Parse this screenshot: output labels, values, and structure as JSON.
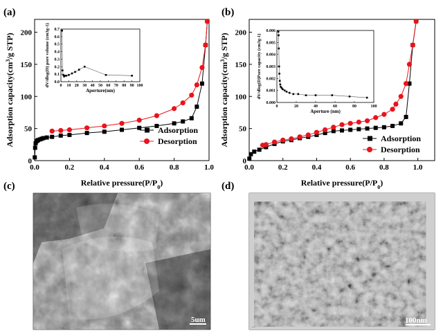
{
  "panel_labels": {
    "a": "(a)",
    "b": "(b)",
    "c": "(c)",
    "d": "(d)"
  },
  "colors": {
    "adsorption": "#000000",
    "desorption": "#e8141c",
    "inset_line": "#555555"
  },
  "chart_data": [
    {
      "id": "a",
      "type": "line",
      "title": "",
      "xlabel": "Relative pressure(P/P0)",
      "ylabel": "Adsorption capacity(cm3/g STP)",
      "xlim": [
        0,
        1.0
      ],
      "ylim": [
        0,
        220
      ],
      "xticks": [
        "0.0",
        "0.2",
        "0.4",
        "0.6",
        "0.8",
        "1.0"
      ],
      "yticks": [
        "0",
        "50",
        "100",
        "150",
        "200"
      ],
      "legend_position": "bottom-right",
      "series": [
        {
          "name": "Adsorption",
          "marker": "square",
          "x": [
            0.001,
            0.003,
            0.006,
            0.01,
            0.015,
            0.02,
            0.03,
            0.04,
            0.05,
            0.07,
            0.1,
            0.15,
            0.2,
            0.3,
            0.4,
            0.5,
            0.6,
            0.7,
            0.8,
            0.85,
            0.9,
            0.93,
            0.96,
            0.98,
            0.99
          ],
          "values": [
            5,
            20,
            27,
            30,
            31,
            32,
            33,
            34,
            35,
            36,
            37,
            39,
            40,
            43,
            45,
            48,
            51,
            54,
            58,
            61,
            66,
            84,
            120,
            180,
            217
          ]
        },
        {
          "name": "Desorption",
          "marker": "circle",
          "x": [
            0.99,
            0.98,
            0.96,
            0.93,
            0.9,
            0.85,
            0.8,
            0.7,
            0.6,
            0.5,
            0.4,
            0.3,
            0.2,
            0.15,
            0.1
          ],
          "values": [
            217,
            180,
            145,
            118,
            102,
            90,
            81,
            70,
            63,
            58,
            54,
            51,
            48,
            47,
            46
          ]
        }
      ],
      "inset": {
        "type": "line",
        "xlabel": "Aperture(nm)",
        "ylabel": "dV/dlog(D) pore volume (cm3g-1)",
        "xlim": [
          0,
          100
        ],
        "ylim": [
          0,
          0.7
        ],
        "xticks": [
          "0",
          "10",
          "20",
          "30",
          "40",
          "50",
          "60",
          "70",
          "80",
          "90",
          "100"
        ],
        "yticks": [
          "0.0",
          "0.1",
          "0.2",
          "0.3",
          "0.4",
          "0.5",
          "0.6",
          "0.7"
        ],
        "x": [
          1.5,
          2,
          3,
          4,
          5,
          7,
          10,
          14,
          18,
          23,
          30,
          57,
          90
        ],
        "values": [
          0.68,
          0.15,
          0.09,
          0.07,
          0.08,
          0.08,
          0.09,
          0.11,
          0.13,
          0.16,
          0.2,
          0.09,
          0.08
        ]
      }
    },
    {
      "id": "b",
      "type": "line",
      "title": "",
      "xlabel": "Relative pressure(P/P0)",
      "ylabel": "Adsorption capacity(cm3/g STP)",
      "xlim": [
        0,
        1.1
      ],
      "ylim": [
        0,
        220
      ],
      "xticks": [
        "0.0",
        "0.2",
        "0.4",
        "0.6",
        "0.8",
        "1.0"
      ],
      "yticks": [
        "0",
        "50",
        "100",
        "150",
        "200"
      ],
      "legend_position": "bottom-right",
      "series": [
        {
          "name": "Adsorption",
          "marker": "square",
          "x": [
            0.001,
            0.01,
            0.03,
            0.06,
            0.1,
            0.15,
            0.2,
            0.25,
            0.3,
            0.35,
            0.4,
            0.45,
            0.5,
            0.55,
            0.6,
            0.65,
            0.7,
            0.75,
            0.8,
            0.85,
            0.9,
            0.93,
            0.95,
            0.97,
            0.99
          ],
          "values": [
            3,
            10,
            14,
            17,
            21,
            26,
            30,
            32,
            35,
            37,
            40,
            43,
            46,
            47,
            48,
            49,
            50,
            51,
            52,
            54,
            58,
            68,
            120,
            180,
            217
          ]
        },
        {
          "name": "Desorption",
          "marker": "circle",
          "x": [
            0.99,
            0.97,
            0.95,
            0.93,
            0.9,
            0.87,
            0.85,
            0.8,
            0.75,
            0.7,
            0.65,
            0.6,
            0.55,
            0.5,
            0.45,
            0.4,
            0.35,
            0.3,
            0.25,
            0.2,
            0.15,
            0.1,
            0.08
          ],
          "values": [
            217,
            180,
            150,
            120,
            100,
            88,
            80,
            72,
            67,
            62,
            60,
            58,
            56,
            52,
            48,
            44,
            40,
            37,
            34,
            32,
            29,
            25,
            24
          ]
        }
      ],
      "inset": {
        "type": "line",
        "xlabel": "Aperture (nm)",
        "ylabel": "dV/dlog(D)Pore capacity (cm3g-1)",
        "xlim": [
          0,
          100
        ],
        "ylim": [
          0,
          0.006
        ],
        "xticks": [
          "0",
          "20",
          "40",
          "60",
          "80",
          "100"
        ],
        "yticks": [
          "0.000",
          "0.001",
          "0.002",
          "0.003",
          "0.004",
          "0.005",
          "0.006"
        ],
        "x": [
          1.5,
          1.8,
          2,
          2.3,
          2.6,
          3,
          3.5,
          4,
          5,
          6,
          8,
          10,
          13,
          17,
          22,
          30,
          40,
          57,
          75,
          93
        ],
        "values": [
          0.0059,
          0.0056,
          0.0045,
          0.003,
          0.0024,
          0.0018,
          0.0015,
          0.0013,
          0.0012,
          0.0011,
          0.001,
          0.0009,
          0.0008,
          0.0007,
          0.0007,
          0.0006,
          0.0006,
          0.0006,
          0.0005,
          0.0004
        ]
      }
    }
  ],
  "micrographs": {
    "c": {
      "scale_bar": "5um",
      "watermark": ""
    },
    "d": {
      "scale_bar": "100nm",
      "watermark": "..."
    }
  }
}
